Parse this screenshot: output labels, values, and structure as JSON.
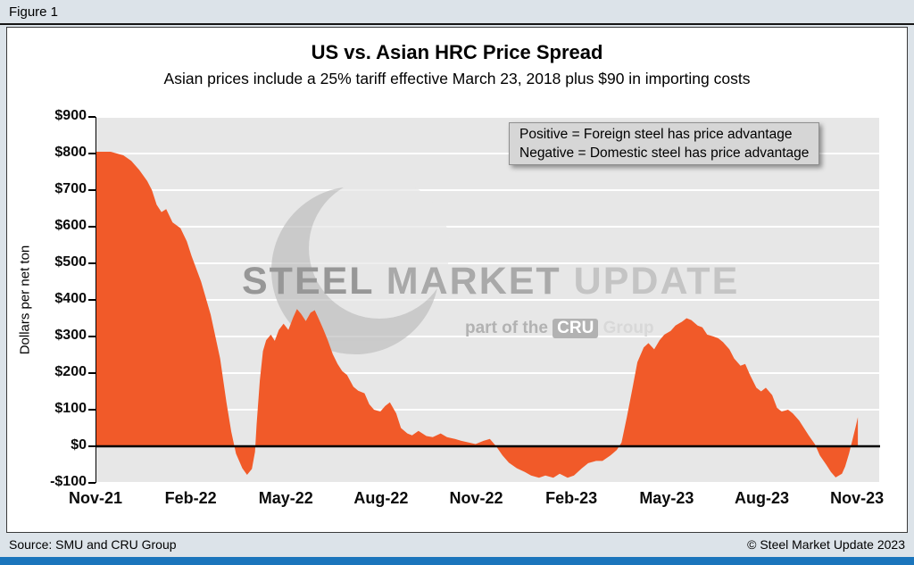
{
  "figure_label": "Figure 1",
  "legend": {
    "line1": "Positive = Foreign steel has price advantage",
    "line2": "Negative = Domestic steel has price advantage"
  },
  "watermark": {
    "brand_words": [
      "STEEL",
      "MARKET",
      "UPDATE"
    ],
    "tagline_prefix": "part of the",
    "tagline_logo": "CRU",
    "tagline_suffix": "Group"
  },
  "footer": {
    "source": "Source: SMU and CRU Group",
    "copyright": "© Steel Market Update 2023"
  },
  "colors": {
    "page_bg": "#DCE3E9",
    "accent_bar": "#1B75BC",
    "plot_bg": "#E7E7E7",
    "series_orange": "#F15A29"
  },
  "chart_data": {
    "type": "area",
    "title": "US vs. Asian HRC Price Spread",
    "subtitle": "Asian prices include a 25% tariff effective March 23, 2018 plus $90 in importing costs",
    "ylabel": "Dollars per net ton",
    "ylim": [
      -100,
      900
    ],
    "xlim_months": [
      0,
      24.7
    ],
    "x_unit": "months since Nov-2021",
    "series_color": "#F15A29",
    "zero_line": true,
    "grid": "horizontal-white",
    "legend_position": "top-right-inside",
    "ytick_values": [
      900,
      800,
      700,
      600,
      500,
      400,
      300,
      200,
      100,
      0,
      -100
    ],
    "ytick_labels": [
      "$900",
      "$800",
      "$700",
      "$600",
      "$500",
      "$400",
      "$300",
      "$200",
      "$100",
      "$0",
      "-$100"
    ],
    "xtick_months": [
      0,
      3,
      6,
      9,
      12,
      15,
      18,
      21,
      24
    ],
    "xtick_labels": [
      "Nov-21",
      "Feb-22",
      "May-22",
      "Aug-22",
      "Nov-22",
      "Feb-23",
      "May-23",
      "Aug-23",
      "Nov-23"
    ],
    "points": [
      [
        0,
        805
      ],
      [
        0.45,
        805
      ],
      [
        0.85,
        795
      ],
      [
        1.1,
        780
      ],
      [
        1.35,
        755
      ],
      [
        1.6,
        725
      ],
      [
        1.75,
        700
      ],
      [
        1.9,
        660
      ],
      [
        2.05,
        640
      ],
      [
        2.2,
        648
      ],
      [
        2.4,
        612
      ],
      [
        2.65,
        596
      ],
      [
        2.85,
        560
      ],
      [
        3.0,
        520
      ],
      [
        3.3,
        450
      ],
      [
        3.6,
        360
      ],
      [
        3.9,
        240
      ],
      [
        4.1,
        120
      ],
      [
        4.25,
        40
      ],
      [
        4.4,
        -20
      ],
      [
        4.6,
        -60
      ],
      [
        4.75,
        -78
      ],
      [
        4.9,
        -62
      ],
      [
        5.0,
        -15
      ],
      [
        5.05,
        60
      ],
      [
        5.15,
        180
      ],
      [
        5.25,
        260
      ],
      [
        5.35,
        290
      ],
      [
        5.5,
        305
      ],
      [
        5.62,
        288
      ],
      [
        5.75,
        318
      ],
      [
        5.9,
        335
      ],
      [
        6.05,
        318
      ],
      [
        6.2,
        352
      ],
      [
        6.32,
        375
      ],
      [
        6.45,
        362
      ],
      [
        6.6,
        342
      ],
      [
        6.75,
        365
      ],
      [
        6.88,
        372
      ],
      [
        7.0,
        350
      ],
      [
        7.15,
        320
      ],
      [
        7.3,
        288
      ],
      [
        7.45,
        252
      ],
      [
        7.6,
        225
      ],
      [
        7.75,
        205
      ],
      [
        7.9,
        195
      ],
      [
        8.1,
        163
      ],
      [
        8.25,
        152
      ],
      [
        8.45,
        145
      ],
      [
        8.6,
        115
      ],
      [
        8.75,
        100
      ],
      [
        8.95,
        95
      ],
      [
        9.1,
        110
      ],
      [
        9.25,
        120
      ],
      [
        9.45,
        90
      ],
      [
        9.6,
        50
      ],
      [
        9.8,
        35
      ],
      [
        9.95,
        30
      ],
      [
        10.15,
        42
      ],
      [
        10.4,
        28
      ],
      [
        10.6,
        25
      ],
      [
        10.85,
        35
      ],
      [
        11.05,
        25
      ],
      [
        11.3,
        20
      ],
      [
        11.5,
        15
      ],
      [
        11.75,
        10
      ],
      [
        11.95,
        6
      ],
      [
        12.2,
        15
      ],
      [
        12.4,
        20
      ],
      [
        12.6,
        0
      ],
      [
        12.8,
        -25
      ],
      [
        13.0,
        -45
      ],
      [
        13.25,
        -60
      ],
      [
        13.5,
        -70
      ],
      [
        13.7,
        -80
      ],
      [
        13.95,
        -86
      ],
      [
        14.15,
        -80
      ],
      [
        14.4,
        -86
      ],
      [
        14.6,
        -75
      ],
      [
        14.85,
        -86
      ],
      [
        15.05,
        -80
      ],
      [
        15.3,
        -60
      ],
      [
        15.5,
        -46
      ],
      [
        15.75,
        -40
      ],
      [
        15.95,
        -40
      ],
      [
        16.2,
        -25
      ],
      [
        16.4,
        -10
      ],
      [
        16.55,
        10
      ],
      [
        16.72,
        80
      ],
      [
        16.9,
        160
      ],
      [
        17.05,
        230
      ],
      [
        17.25,
        270
      ],
      [
        17.4,
        282
      ],
      [
        17.58,
        265
      ],
      [
        17.75,
        290
      ],
      [
        17.9,
        305
      ],
      [
        18.1,
        315
      ],
      [
        18.25,
        330
      ],
      [
        18.45,
        340
      ],
      [
        18.6,
        350
      ],
      [
        18.75,
        345
      ],
      [
        18.95,
        330
      ],
      [
        19.1,
        325
      ],
      [
        19.25,
        305
      ],
      [
        19.45,
        300
      ],
      [
        19.6,
        295
      ],
      [
        19.75,
        285
      ],
      [
        19.95,
        265
      ],
      [
        20.1,
        240
      ],
      [
        20.3,
        220
      ],
      [
        20.45,
        225
      ],
      [
        20.6,
        195
      ],
      [
        20.8,
        160
      ],
      [
        20.95,
        150
      ],
      [
        21.1,
        160
      ],
      [
        21.3,
        140
      ],
      [
        21.45,
        105
      ],
      [
        21.6,
        95
      ],
      [
        21.8,
        100
      ],
      [
        21.95,
        90
      ],
      [
        22.15,
        70
      ],
      [
        22.3,
        50
      ],
      [
        22.45,
        30
      ],
      [
        22.65,
        5
      ],
      [
        22.8,
        -25
      ],
      [
        23.0,
        -50
      ],
      [
        23.15,
        -70
      ],
      [
        23.3,
        -85
      ],
      [
        23.5,
        -75
      ],
      [
        23.6,
        -55
      ],
      [
        23.72,
        -20
      ],
      [
        23.85,
        25
      ],
      [
        23.95,
        60
      ],
      [
        24.0,
        80
      ]
    ]
  }
}
